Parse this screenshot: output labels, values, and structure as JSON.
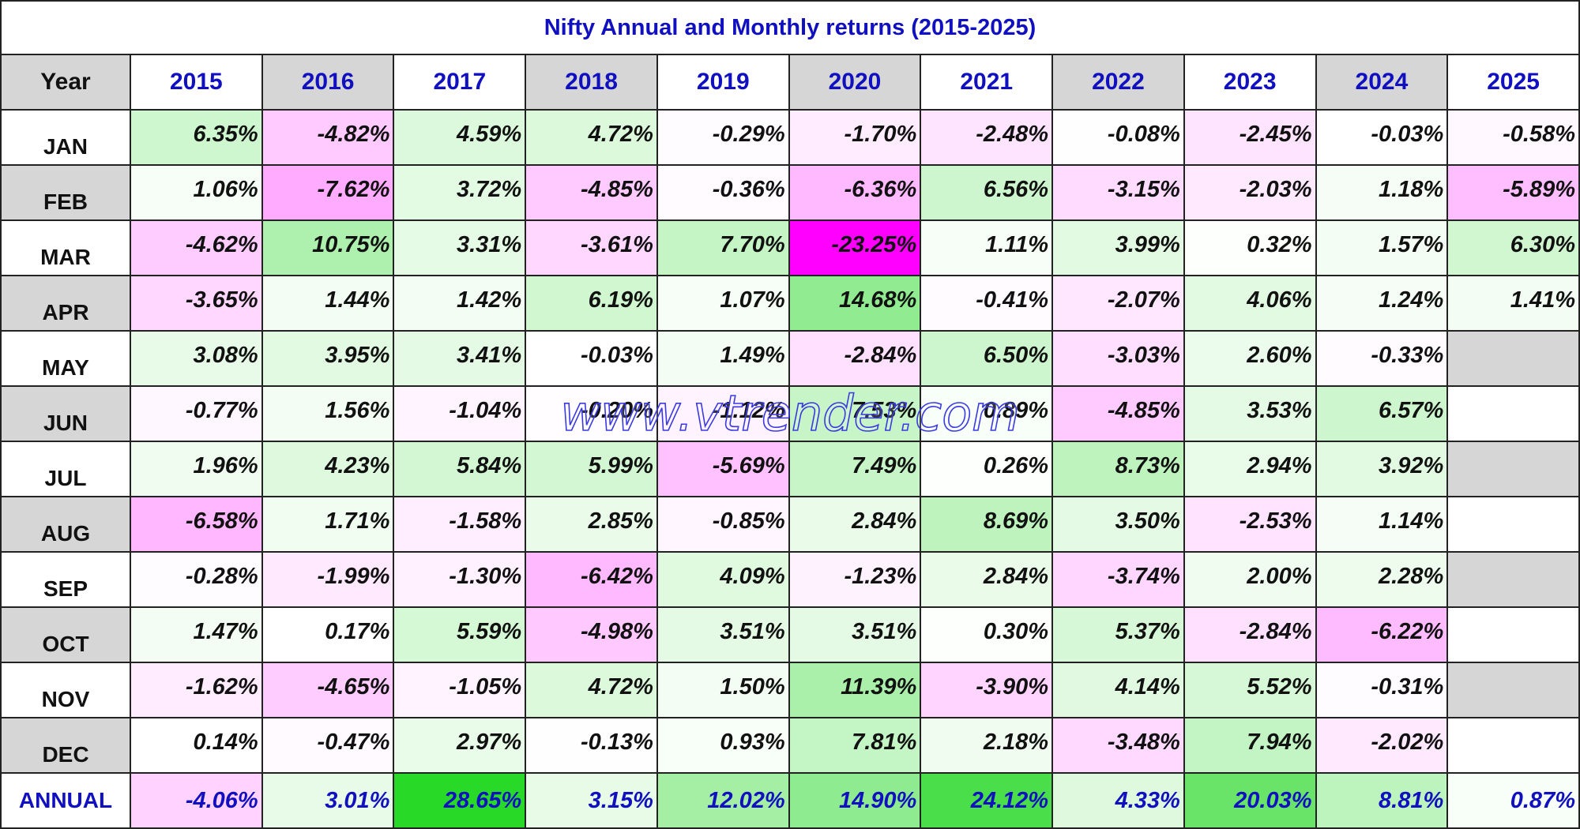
{
  "title": "Nifty Annual and Monthly returns (2015-2025)",
  "watermark": "www.vtrender.com",
  "table": {
    "header": [
      "Year",
      "2015",
      "2016",
      "2017",
      "2018",
      "2019",
      "2020",
      "2021",
      "2022",
      "2023",
      "2024",
      "2025"
    ],
    "rows": [
      [
        "JAN",
        "6.35%",
        "-4.82%",
        "4.59%",
        "4.72%",
        "-0.29%",
        "-1.70%",
        "-2.48%",
        "-0.08%",
        "-2.45%",
        "-0.03%",
        "-0.58%"
      ],
      [
        "FEB",
        "1.06%",
        "-7.62%",
        "3.72%",
        "-4.85%",
        "-0.36%",
        "-6.36%",
        "6.56%",
        "-3.15%",
        "-2.03%",
        "1.18%",
        "-5.89%"
      ],
      [
        "MAR",
        "-4.62%",
        "10.75%",
        "3.31%",
        "-3.61%",
        "7.70%",
        "-23.25%",
        "1.11%",
        "3.99%",
        "0.32%",
        "1.57%",
        "6.30%"
      ],
      [
        "APR",
        "-3.65%",
        "1.44%",
        "1.42%",
        "6.19%",
        "1.07%",
        "14.68%",
        "-0.41%",
        "-2.07%",
        "4.06%",
        "1.24%",
        "1.41%"
      ],
      [
        "MAY",
        "3.08%",
        "3.95%",
        "3.41%",
        "-0.03%",
        "1.49%",
        "-2.84%",
        "6.50%",
        "-3.03%",
        "2.60%",
        "-0.33%",
        null
      ],
      [
        "JUN",
        "-0.77%",
        "1.56%",
        "-1.04%",
        "-0.20%",
        "-1.12%",
        "7.53%",
        "0.89%",
        "-4.85%",
        "3.53%",
        "6.57%",
        null
      ],
      [
        "JUL",
        "1.96%",
        "4.23%",
        "5.84%",
        "5.99%",
        "-5.69%",
        "7.49%",
        "0.26%",
        "8.73%",
        "2.94%",
        "3.92%",
        null
      ],
      [
        "AUG",
        "-6.58%",
        "1.71%",
        "-1.58%",
        "2.85%",
        "-0.85%",
        "2.84%",
        "8.69%",
        "3.50%",
        "-2.53%",
        "1.14%",
        null
      ],
      [
        "SEP",
        "-0.28%",
        "-1.99%",
        "-1.30%",
        "-6.42%",
        "4.09%",
        "-1.23%",
        "2.84%",
        "-3.74%",
        "2.00%",
        "2.28%",
        null
      ],
      [
        "OCT",
        "1.47%",
        "0.17%",
        "5.59%",
        "-4.98%",
        "3.51%",
        "3.51%",
        "0.30%",
        "5.37%",
        "-2.84%",
        "-6.22%",
        null
      ],
      [
        "NOV",
        "-1.62%",
        "-4.65%",
        "-1.05%",
        "4.72%",
        "1.50%",
        "11.39%",
        "-3.90%",
        "4.14%",
        "5.52%",
        "-0.31%",
        null
      ],
      [
        "DEC",
        "0.14%",
        "-0.47%",
        "2.97%",
        "-0.13%",
        "0.93%",
        "7.81%",
        "2.18%",
        "-3.48%",
        "7.94%",
        "-2.02%",
        null
      ],
      [
        "ANNUAL",
        "-4.06%",
        "3.01%",
        "28.65%",
        "3.15%",
        "12.02%",
        "14.90%",
        "24.12%",
        "4.33%",
        "20.03%",
        "8.81%",
        "0.87%"
      ]
    ]
  }
}
